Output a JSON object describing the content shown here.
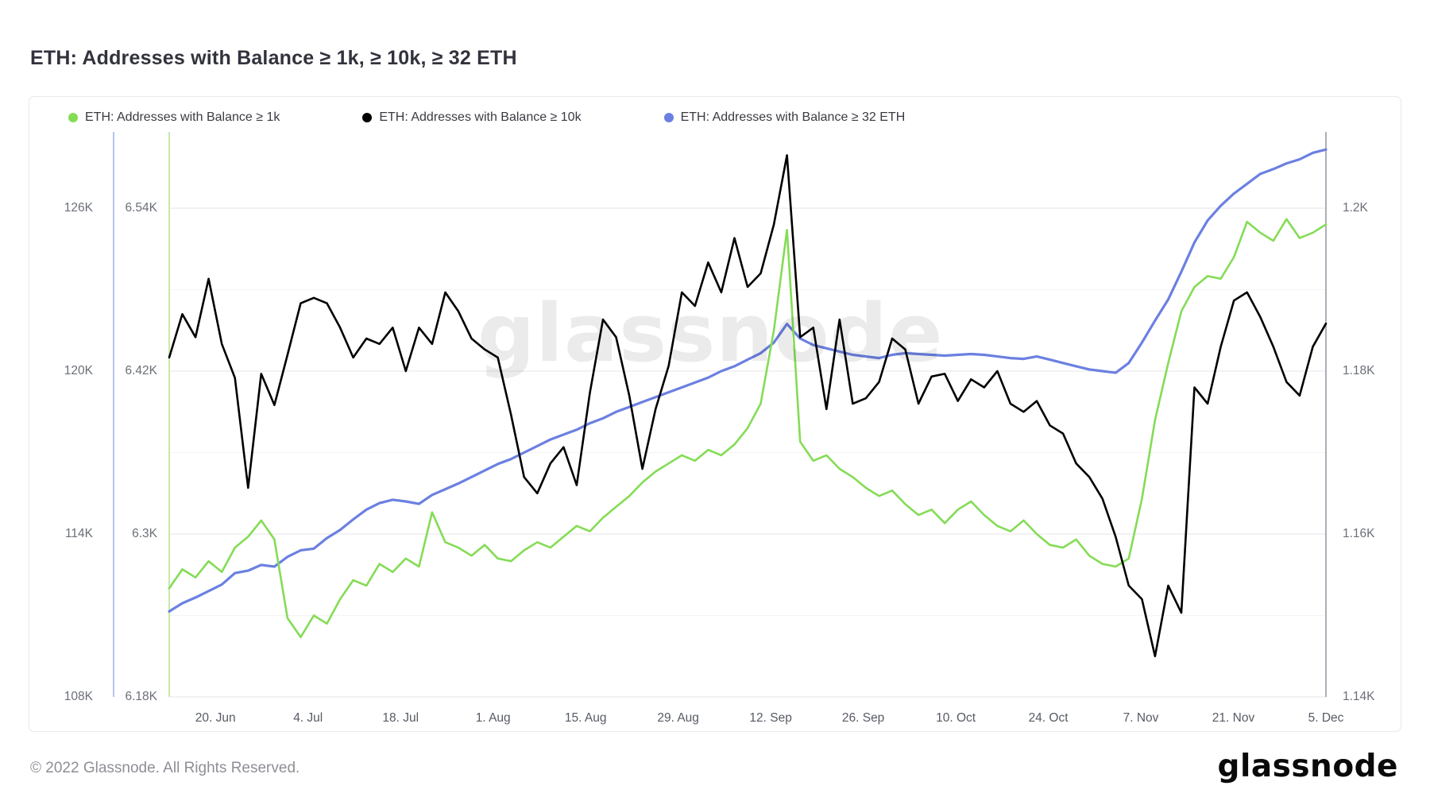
{
  "title": "ETH: Addresses with Balance ≥ 1k, ≥ 10k, ≥ 32 ETH",
  "watermark": "glassnode",
  "legend": [
    {
      "label": "ETH: Addresses with Balance ≥ 1k",
      "color": "#84dc55"
    },
    {
      "label": "ETH: Addresses with Balance ≥ 10k",
      "color": "#000000"
    },
    {
      "label": "ETH: Addresses with Balance ≥ 32 ETH",
      "color": "#6b80e1"
    }
  ],
  "footer": {
    "copyright": "© 2022 Glassnode. All Rights Reserved.",
    "logo_text": "glassnode"
  },
  "chart_data": {
    "type": "line",
    "title": "ETH: Addresses with Balance ≥ 1k, ≥ 10k, ≥ 32 ETH",
    "grid": true,
    "legend_position": "top-left",
    "dates": [
      "2022-06-13",
      "2022-06-15",
      "2022-06-17",
      "2022-06-19",
      "2022-06-21",
      "2022-06-23",
      "2022-06-25",
      "2022-06-27",
      "2022-06-29",
      "2022-07-01",
      "2022-07-03",
      "2022-07-05",
      "2022-07-07",
      "2022-07-09",
      "2022-07-11",
      "2022-07-13",
      "2022-07-15",
      "2022-07-17",
      "2022-07-19",
      "2022-07-21",
      "2022-07-23",
      "2022-07-25",
      "2022-07-27",
      "2022-07-29",
      "2022-07-31",
      "2022-08-02",
      "2022-08-04",
      "2022-08-06",
      "2022-08-08",
      "2022-08-10",
      "2022-08-12",
      "2022-08-14",
      "2022-08-16",
      "2022-08-18",
      "2022-08-20",
      "2022-08-22",
      "2022-08-24",
      "2022-08-26",
      "2022-08-28",
      "2022-08-30",
      "2022-09-01",
      "2022-09-03",
      "2022-09-05",
      "2022-09-07",
      "2022-09-09",
      "2022-09-11",
      "2022-09-13",
      "2022-09-15",
      "2022-09-17",
      "2022-09-19",
      "2022-09-21",
      "2022-09-23",
      "2022-09-25",
      "2022-09-27",
      "2022-09-29",
      "2022-10-01",
      "2022-10-03",
      "2022-10-05",
      "2022-10-07",
      "2022-10-09",
      "2022-10-11",
      "2022-10-13",
      "2022-10-15",
      "2022-10-17",
      "2022-10-19",
      "2022-10-21",
      "2022-10-23",
      "2022-10-25",
      "2022-10-27",
      "2022-10-29",
      "2022-10-31",
      "2022-11-02",
      "2022-11-04",
      "2022-11-06",
      "2022-11-08",
      "2022-11-10",
      "2022-11-12",
      "2022-11-14",
      "2022-11-16",
      "2022-11-18",
      "2022-11-20",
      "2022-11-22",
      "2022-11-24",
      "2022-11-26",
      "2022-11-28",
      "2022-11-30",
      "2022-12-02",
      "2022-12-04",
      "2022-12-05"
    ],
    "series": [
      {
        "name": "ETH: Addresses with Balance ≥ 1k",
        "color": "#84dc55",
        "axis": "left_outer",
        "stroke_width": 2.6,
        "values": [
          112000,
          112700,
          112400,
          113000,
          112600,
          113500,
          113900,
          114500,
          113800,
          110900,
          110200,
          111000,
          110700,
          111600,
          112300,
          112100,
          112900,
          112600,
          113100,
          112800,
          114800,
          113700,
          113500,
          113200,
          113600,
          113100,
          113000,
          113400,
          113700,
          113500,
          113900,
          114300,
          114100,
          114600,
          115000,
          115400,
          115900,
          116300,
          116600,
          116900,
          116700,
          117100,
          116900,
          117300,
          117900,
          118800,
          121500,
          125200,
          117400,
          116700,
          116900,
          116400,
          116100,
          115700,
          115400,
          115600,
          115100,
          114700,
          114900,
          114400,
          114900,
          115200,
          114700,
          114300,
          114100,
          114500,
          114000,
          113600,
          113500,
          113800,
          113200,
          112900,
          112800,
          113100,
          115300,
          118200,
          120300,
          122200,
          123100,
          123500,
          123400,
          124200,
          125500,
          125100,
          124800,
          125600,
          124900,
          125100,
          125400
        ]
      },
      {
        "name": "ETH: Addresses with Balance ≥ 10k",
        "color": "#000000",
        "axis": "left_inner",
        "stroke_width": 2.6,
        "values": [
          6430,
          6462,
          6445,
          6488,
          6440,
          6415,
          6334,
          6418,
          6395,
          6432,
          6470,
          6474,
          6470,
          6452,
          6430,
          6444,
          6440,
          6452,
          6420,
          6452,
          6440,
          6478,
          6464,
          6444,
          6436,
          6430,
          6388,
          6342,
          6330,
          6352,
          6364,
          6336,
          6404,
          6458,
          6445,
          6402,
          6348,
          6392,
          6424,
          6478,
          6468,
          6500,
          6478,
          6518,
          6482,
          6492,
          6528,
          6579,
          6445,
          6452,
          6392,
          6458,
          6396,
          6400,
          6412,
          6444,
          6436,
          6396,
          6416,
          6418,
          6398,
          6414,
          6408,
          6420,
          6396,
          6390,
          6398,
          6380,
          6374,
          6352,
          6342,
          6326,
          6298,
          6262,
          6252,
          6210,
          6262,
          6242,
          6408,
          6396,
          6438,
          6472,
          6478,
          6460,
          6438,
          6412,
          6402,
          6438,
          6455
        ]
      },
      {
        "name": "ETH: Addresses with Balance ≥ 32 ETH",
        "color": "#6b80e1",
        "axis": "right",
        "stroke_width": 3.2,
        "values": [
          1150.5,
          1151.5,
          1152.2,
          1153.0,
          1153.8,
          1155.2,
          1155.5,
          1156.2,
          1156.0,
          1157.2,
          1158.0,
          1158.2,
          1159.5,
          1160.5,
          1161.8,
          1163.0,
          1163.8,
          1164.2,
          1164.0,
          1163.7,
          1164.8,
          1165.5,
          1166.2,
          1167.0,
          1167.8,
          1168.6,
          1169.2,
          1170.0,
          1170.8,
          1171.6,
          1172.2,
          1172.8,
          1173.6,
          1174.2,
          1175.0,
          1175.6,
          1176.2,
          1176.8,
          1177.4,
          1178.0,
          1178.6,
          1179.2,
          1180.0,
          1180.6,
          1181.4,
          1182.2,
          1183.5,
          1185.8,
          1184.0,
          1183.2,
          1182.8,
          1182.4,
          1182.0,
          1181.8,
          1181.6,
          1182.0,
          1182.2,
          1182.1,
          1182.0,
          1181.9,
          1182.0,
          1182.1,
          1182.0,
          1181.8,
          1181.6,
          1181.5,
          1181.8,
          1181.4,
          1181.0,
          1180.6,
          1180.2,
          1180.0,
          1179.8,
          1181.0,
          1183.5,
          1186.2,
          1188.8,
          1192.2,
          1195.8,
          1198.5,
          1200.3,
          1201.8,
          1203.0,
          1204.2,
          1204.8,
          1205.5,
          1206.0,
          1206.8,
          1207.2
        ]
      }
    ],
    "axes": {
      "left_outer": {
        "range": [
          108000,
          126000
        ],
        "ticks": [
          "126K",
          "120K",
          "114K",
          "108K"
        ],
        "color": "#84dc55"
      },
      "left_inner": {
        "range": [
          6180,
          6540
        ],
        "ticks": [
          "6.54K",
          "6.42K",
          "6.3K",
          "6.18K"
        ],
        "color": "#000000"
      },
      "right": {
        "range": [
          1140,
          1200
        ],
        "ticks": [
          "1.2K",
          "1.18K",
          "1.16K",
          "1.14K"
        ],
        "color": "#6b80e1"
      },
      "x": {
        "tick_labels": [
          "20. Jun",
          "4. Jul",
          "18. Jul",
          "1. Aug",
          "15. Aug",
          "29. Aug",
          "12. Sep",
          "26. Sep",
          "10. Oct",
          "24. Oct",
          "7. Nov",
          "21. Nov",
          "5. Dec"
        ],
        "tick_days": [
          7,
          21,
          35,
          49,
          63,
          77,
          91,
          105,
          119,
          133,
          147,
          161,
          175
        ],
        "total_days": 175
      }
    }
  }
}
